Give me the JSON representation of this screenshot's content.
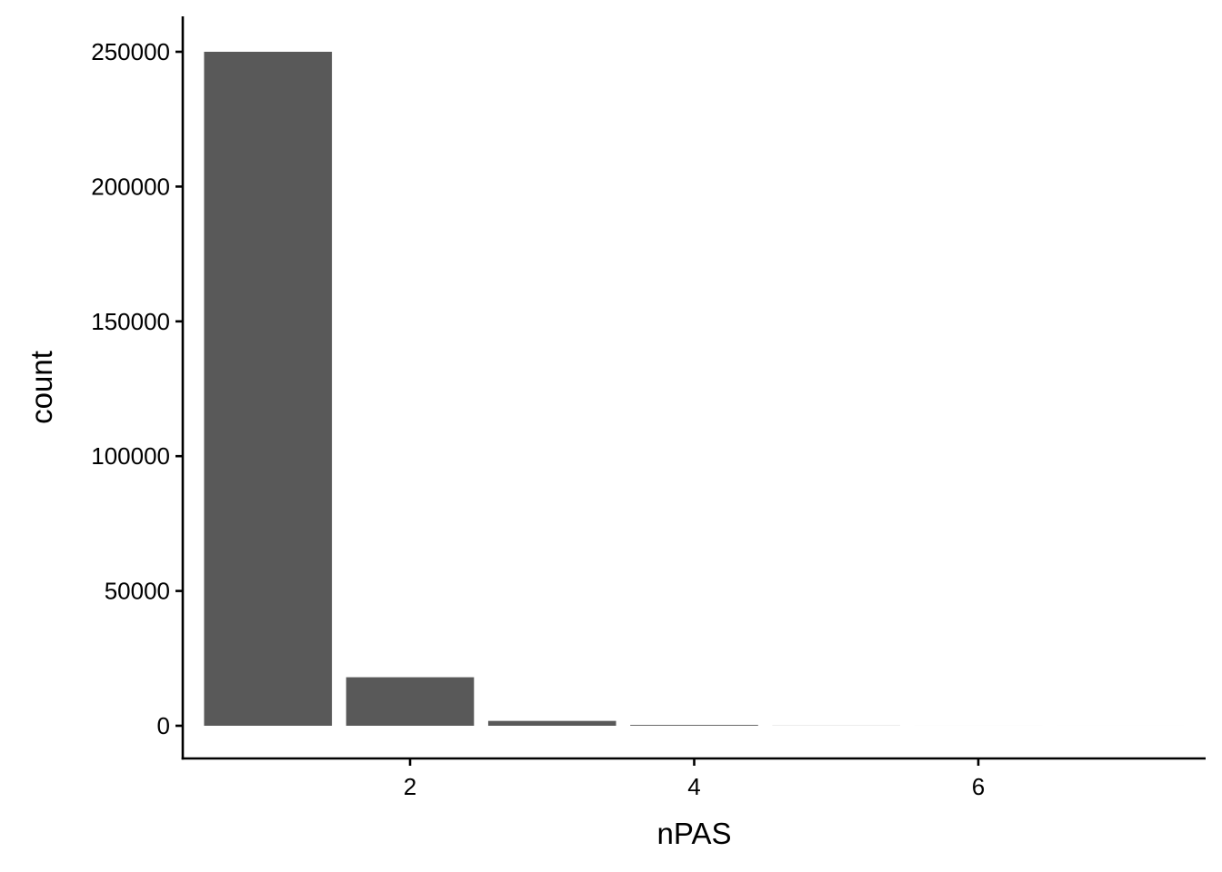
{
  "chart_data": {
    "type": "bar",
    "xlabel": "nPAS",
    "ylabel": "count",
    "x": [
      1,
      2,
      3,
      4,
      5,
      6,
      7
    ],
    "values": [
      250000,
      18000,
      1800,
      300,
      40,
      5,
      1
    ],
    "xlim": [
      0.4,
      7.6
    ],
    "ylim": [
      0,
      262500
    ],
    "x_ticks": [
      2,
      4,
      6
    ],
    "y_ticks": [
      0,
      50000,
      100000,
      150000,
      200000,
      250000
    ],
    "bar_color": "#595959",
    "grid": false,
    "legend": "none"
  }
}
